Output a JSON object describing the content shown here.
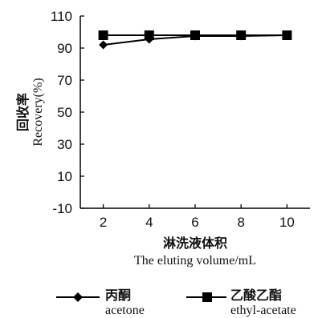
{
  "chart_data": {
    "type": "line",
    "x": [
      2,
      4,
      6,
      8,
      10
    ],
    "xlim": [
      1,
      11
    ],
    "ylim": [
      -10,
      110
    ],
    "x_ticks": [
      "2",
      "4",
      "6",
      "8",
      "10"
    ],
    "y_ticks": [
      "-10",
      "10",
      "30",
      "50",
      "70",
      "90",
      "110"
    ],
    "xlabel_cn": "淋洗液体积",
    "xlabel_en": "The eluting volume/mL",
    "ylabel_cn": "回收率",
    "ylabel_en": "Recovery(%)",
    "legend_position": "bottom",
    "series": [
      {
        "name_cn": "丙酮",
        "name_en": "acetone",
        "marker": "diamond",
        "color": "#000000",
        "values": [
          92,
          95.5,
          97.5,
          97.5,
          98
        ]
      },
      {
        "name_cn": "乙酸乙酯",
        "name_en": "ethyl-acetate",
        "marker": "square",
        "color": "#000000",
        "values": [
          98,
          98,
          98,
          98,
          98
        ]
      }
    ]
  }
}
